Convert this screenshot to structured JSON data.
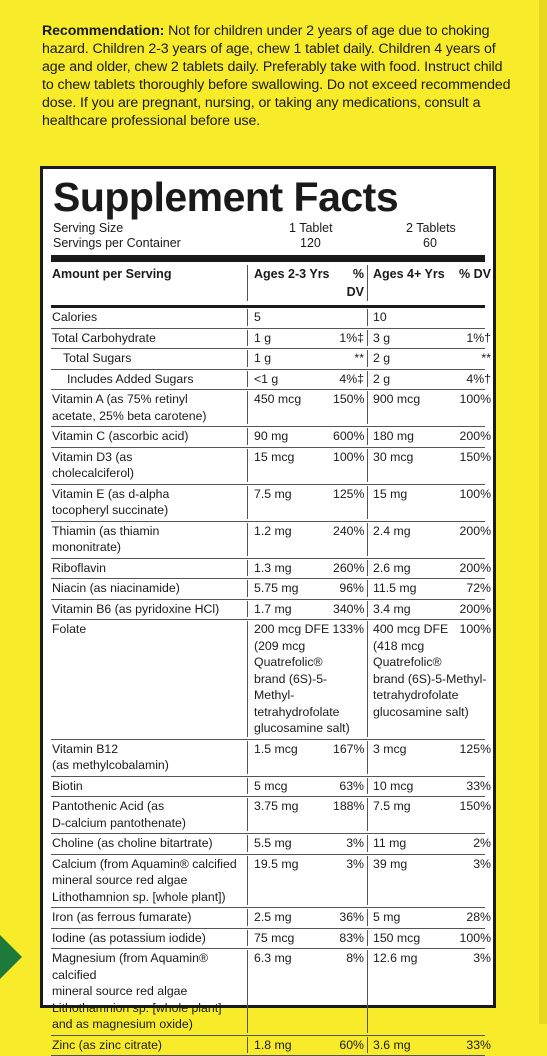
{
  "recommendation": {
    "label": "Recommendation:",
    "text": " Not for children under 2 years of age due to choking hazard. Children 2-3 years of age, chew 1 tablet daily. Children 4 years of age and older, chew 2 tablets daily. Preferably take with food. Instruct child to chew tablets thoroughly before swallowing. Do not exceed recommended dose. If you are pregnant, nursing, or taking any medications, consult a healthcare professional before use."
  },
  "facts": {
    "title": "Supplement Facts",
    "serving_size_label": "Serving Size",
    "servings_label": "Servings per Container",
    "serving_a": "1 Tablet",
    "serving_b": "2 Tablets",
    "servings_a": "120",
    "servings_b": "60",
    "header": {
      "amount": "Amount per Serving",
      "col_a": "Ages 2-3 Yrs",
      "dv_a": "% DV",
      "col_b": "Ages 4+ Yrs",
      "dv_b": "% DV"
    },
    "rows": [
      {
        "name": "Calories",
        "a": "5",
        "adv": "",
        "b": "10",
        "bdv": "",
        "indent": 0
      },
      {
        "name": "Total Carbohydrate",
        "a": "1 g",
        "adv": "1%‡",
        "b": "3 g",
        "bdv": "1%†",
        "indent": 0
      },
      {
        "name": "Total Sugars",
        "a": "1 g",
        "adv": "**",
        "b": "2 g",
        "bdv": "**",
        "indent": 1
      },
      {
        "name": "Includes Added Sugars",
        "a": "<1 g",
        "adv": "4%‡",
        "b": "2 g",
        "bdv": "4%†",
        "indent": 2
      },
      {
        "name": "Vitamin A (as 75% retinyl\nacetate, 25% beta carotene)",
        "a": "450 mcg",
        "adv": "150%",
        "b": "900 mcg",
        "bdv": "100%",
        "indent": 0
      },
      {
        "name": "Vitamin C (ascorbic acid)",
        "a": "90 mg",
        "adv": "600%",
        "b": "180 mg",
        "bdv": "200%",
        "indent": 0
      },
      {
        "name": "Vitamin D3 (as\ncholecalciferol)",
        "a": "15 mcg",
        "adv": "100%",
        "b": "30 mcg",
        "bdv": "150%",
        "indent": 0
      },
      {
        "name": "Vitamin E (as d-alpha\ntocopheryl succinate)",
        "a": "7.5 mg",
        "adv": "125%",
        "b": "15 mg",
        "bdv": "100%",
        "indent": 0
      },
      {
        "name": "Thiamin (as thiamin\nmononitrate)",
        "a": "1.2 mg",
        "adv": "240%",
        "b": "2.4 mg",
        "bdv": "200%",
        "indent": 0
      },
      {
        "name": "Riboflavin",
        "a": "1.3 mg",
        "adv": "260%",
        "b": "2.6 mg",
        "bdv": "200%",
        "indent": 0
      },
      {
        "name": "Niacin (as niacinamide)",
        "a": "5.75 mg",
        "adv": "96%",
        "b": "11.5 mg",
        "bdv": "72%",
        "indent": 0
      },
      {
        "name": "Vitamin B6 (as pyridoxine HCl)",
        "a": "1.7 mg",
        "adv": "340%",
        "b": "3.4 mg",
        "bdv": "200%",
        "indent": 0
      }
    ],
    "folate": {
      "name": "Folate",
      "a": "200 mcg DFE",
      "adv": "133%",
      "a_detail": "(209 mcg Quatrefolic®\nbrand (6S)-5-Methyl-\ntetrahydrofolate\nglucosamine salt)",
      "b": "400 mcg DFE",
      "bdv": "100%",
      "b_detail": "(418 mcg Quatrefolic®\nbrand (6S)-5-Methyl-\ntetrahydrofolate\nglucosamine salt)"
    },
    "rows2": [
      {
        "name": "Vitamin B12\n(as methylcobalamin)",
        "a": "1.5 mcg",
        "adv": "167%",
        "b": "3 mcg",
        "bdv": "125%",
        "indent": 0
      },
      {
        "name": "Biotin",
        "a": "5 mcg",
        "adv": "63%",
        "b": "10 mcg",
        "bdv": "33%",
        "indent": 0
      },
      {
        "name": "Pantothenic Acid (as\nD-calcium pantothenate)",
        "a": "3.75 mg",
        "adv": "188%",
        "b": "7.5 mg",
        "bdv": "150%",
        "indent": 0
      },
      {
        "name": "Choline (as choline bitartrate)",
        "a": "5.5 mg",
        "adv": "3%",
        "b": "11 mg",
        "bdv": "2%",
        "indent": 0
      },
      {
        "name": "Calcium (from Aquamin® calcified\n   mineral source red algae\n   Lithothamnion sp. [whole plant])",
        "a": "19.5 mg",
        "adv": "3%",
        "b": "39 mg",
        "bdv": "3%",
        "indent": 0
      },
      {
        "name": "Iron (as ferrous fumarate)",
        "a": "2.5 mg",
        "adv": "36%",
        "b": "5 mg",
        "bdv": "28%",
        "indent": 0
      },
      {
        "name": "Iodine (as potassium iodide)",
        "a": "75 mcg",
        "adv": "83%",
        "b": "150 mcg",
        "bdv": "100%",
        "indent": 0
      },
      {
        "name": "Magnesium (from Aquamin® calcified\n   mineral source red algae\n   Lithothamnion sp. [whole plant]\n   and as magnesium oxide)",
        "a": "6.3 mg",
        "adv": "8%",
        "b": "12.6 mg",
        "bdv": "3%",
        "indent": 0
      },
      {
        "name": "Zinc (as zinc citrate)",
        "a": "1.8 mg",
        "adv": "60%",
        "b": "3.6 mg",
        "bdv": "33%",
        "indent": 0
      }
    ]
  },
  "colors": {
    "background": "#f8ec2a",
    "panel": "#ffffff",
    "text": "#1a1a1a",
    "tab": "#1e7a3a"
  }
}
